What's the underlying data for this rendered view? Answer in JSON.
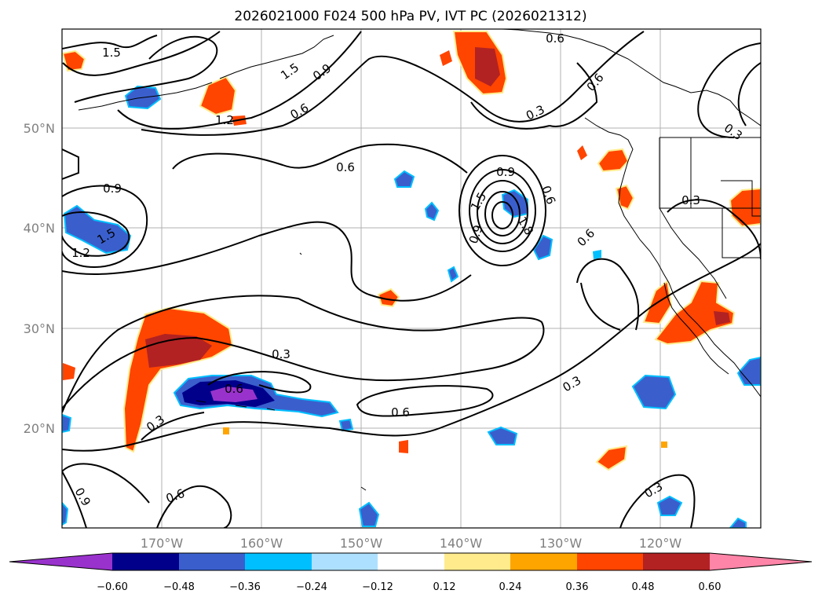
{
  "title": "2026021000 F024 500 hPa PV, IVT PC (2026021312)",
  "map": {
    "lon_labels": [
      "170°W",
      "160°W",
      "150°W",
      "140°W",
      "130°W",
      "120°W"
    ],
    "lat_labels": [
      "50°N",
      "40°N",
      "30°N",
      "20°N"
    ],
    "contour_labels": [
      "1.5",
      "1.5",
      "0.9",
      "1.2",
      "0.6",
      "0.6",
      "0.3",
      "0.6",
      "0.9",
      "0.3",
      "0.6",
      "0.9",
      "1.5",
      "1.8",
      "0.6",
      "0.6",
      "0.3",
      "0.9",
      "1.5",
      "1.2",
      "0.3",
      "0.6",
      "0.6",
      "0.3",
      "0.3",
      "0.9",
      "0.6",
      "0.3"
    ]
  },
  "colorbar": {
    "tick_labels": [
      "−0.60",
      "−0.48",
      "−0.36",
      "−0.24",
      "−0.12",
      "0.12",
      "0.24",
      "0.36",
      "0.48",
      "0.60"
    ],
    "colors": [
      "#9932CC",
      "#00008B",
      "#3A5FCD",
      "#00BFFF",
      "#ADE0FF",
      "#FFFFFF",
      "#FFEB8C",
      "#FFA500",
      "#FF4500",
      "#B22222",
      "#FF85A8"
    ]
  }
}
